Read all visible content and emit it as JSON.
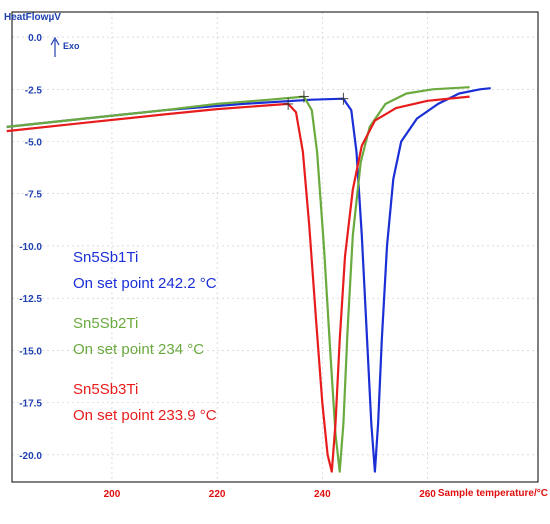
{
  "chart_data": {
    "type": "line",
    "ylabel": "HeatFlowµV",
    "xlabel": "Sample temperature/°C",
    "exo_label": "Exo",
    "xlim": [
      181,
      281
    ],
    "ylim": [
      -21.3,
      1.2
    ],
    "x_ticks": [
      "200",
      "220",
      "240",
      "260"
    ],
    "y_ticks": [
      "0.0",
      "-2.5",
      "-5.0",
      "-7.5",
      "-10.0",
      "-12.5",
      "-15.0",
      "-17.5",
      "-20.0"
    ],
    "grid": true,
    "series": [
      {
        "name": "Sn5Sb1Ti",
        "color": "#1a2fd6",
        "points": [
          [
            180,
            -4.3
          ],
          [
            195,
            -3.9
          ],
          [
            210,
            -3.5
          ],
          [
            225,
            -3.2
          ],
          [
            238,
            -3.0
          ],
          [
            244,
            -2.95
          ],
          [
            245.5,
            -3.5
          ],
          [
            246.5,
            -5.5
          ],
          [
            247.5,
            -9.5
          ],
          [
            248.5,
            -14.5
          ],
          [
            249.3,
            -18.5
          ],
          [
            250,
            -20.8
          ],
          [
            250.6,
            -18.5
          ],
          [
            251.3,
            -14.5
          ],
          [
            252.3,
            -10
          ],
          [
            253.5,
            -6.8
          ],
          [
            255,
            -5
          ],
          [
            258,
            -3.9
          ],
          [
            262,
            -3.2
          ],
          [
            266,
            -2.7
          ],
          [
            270,
            -2.5
          ],
          [
            272,
            -2.45
          ]
        ]
      },
      {
        "name": "Sn5Sb2Ti",
        "color": "#6aaa3f",
        "points": [
          [
            180,
            -4.3
          ],
          [
            195,
            -3.9
          ],
          [
            210,
            -3.5
          ],
          [
            220,
            -3.2
          ],
          [
            230,
            -3.0
          ],
          [
            236.5,
            -2.85
          ],
          [
            238,
            -3.5
          ],
          [
            239,
            -5.5
          ],
          [
            240.3,
            -10
          ],
          [
            241.5,
            -15
          ],
          [
            242.5,
            -19
          ],
          [
            243.3,
            -20.8
          ],
          [
            244,
            -18.5
          ],
          [
            244.8,
            -14
          ],
          [
            245.8,
            -9.5
          ],
          [
            247.3,
            -6
          ],
          [
            249,
            -4.3
          ],
          [
            252,
            -3.2
          ],
          [
            256,
            -2.7
          ],
          [
            261,
            -2.5
          ],
          [
            268,
            -2.4
          ]
        ]
      },
      {
        "name": "Sn5Sb3Ti",
        "color": "#e81c1c",
        "points": [
          [
            180,
            -4.5
          ],
          [
            195,
            -4.1
          ],
          [
            210,
            -3.7
          ],
          [
            220,
            -3.45
          ],
          [
            228,
            -3.3
          ],
          [
            233.5,
            -3.2
          ],
          [
            235,
            -3.6
          ],
          [
            236.3,
            -5.5
          ],
          [
            237.5,
            -9
          ],
          [
            238.8,
            -13.5
          ],
          [
            240,
            -17.5
          ],
          [
            241,
            -20
          ],
          [
            241.8,
            -20.8
          ],
          [
            242.5,
            -18.5
          ],
          [
            243.3,
            -14.5
          ],
          [
            244.3,
            -10.5
          ],
          [
            245.8,
            -7.3
          ],
          [
            247.5,
            -5.2
          ],
          [
            250,
            -4
          ],
          [
            254,
            -3.4
          ],
          [
            260,
            -3.05
          ],
          [
            268,
            -2.85
          ]
        ]
      }
    ],
    "annotations": [
      {
        "text": "Sn5Sb1Ti",
        "color": "#1a2fd6"
      },
      {
        "text": "On set point 242.2 °C",
        "color": "#1a2fd6"
      },
      {
        "text": "Sn5Sb2Ti",
        "color": "#6aaa3f"
      },
      {
        "text": "On set point 234 °C",
        "color": "#6aaa3f"
      },
      {
        "text": "Sn5Sb3Ti",
        "color": "#e81c1c"
      },
      {
        "text": "On set point 233.9 °C",
        "color": "#e81c1c"
      }
    ]
  }
}
